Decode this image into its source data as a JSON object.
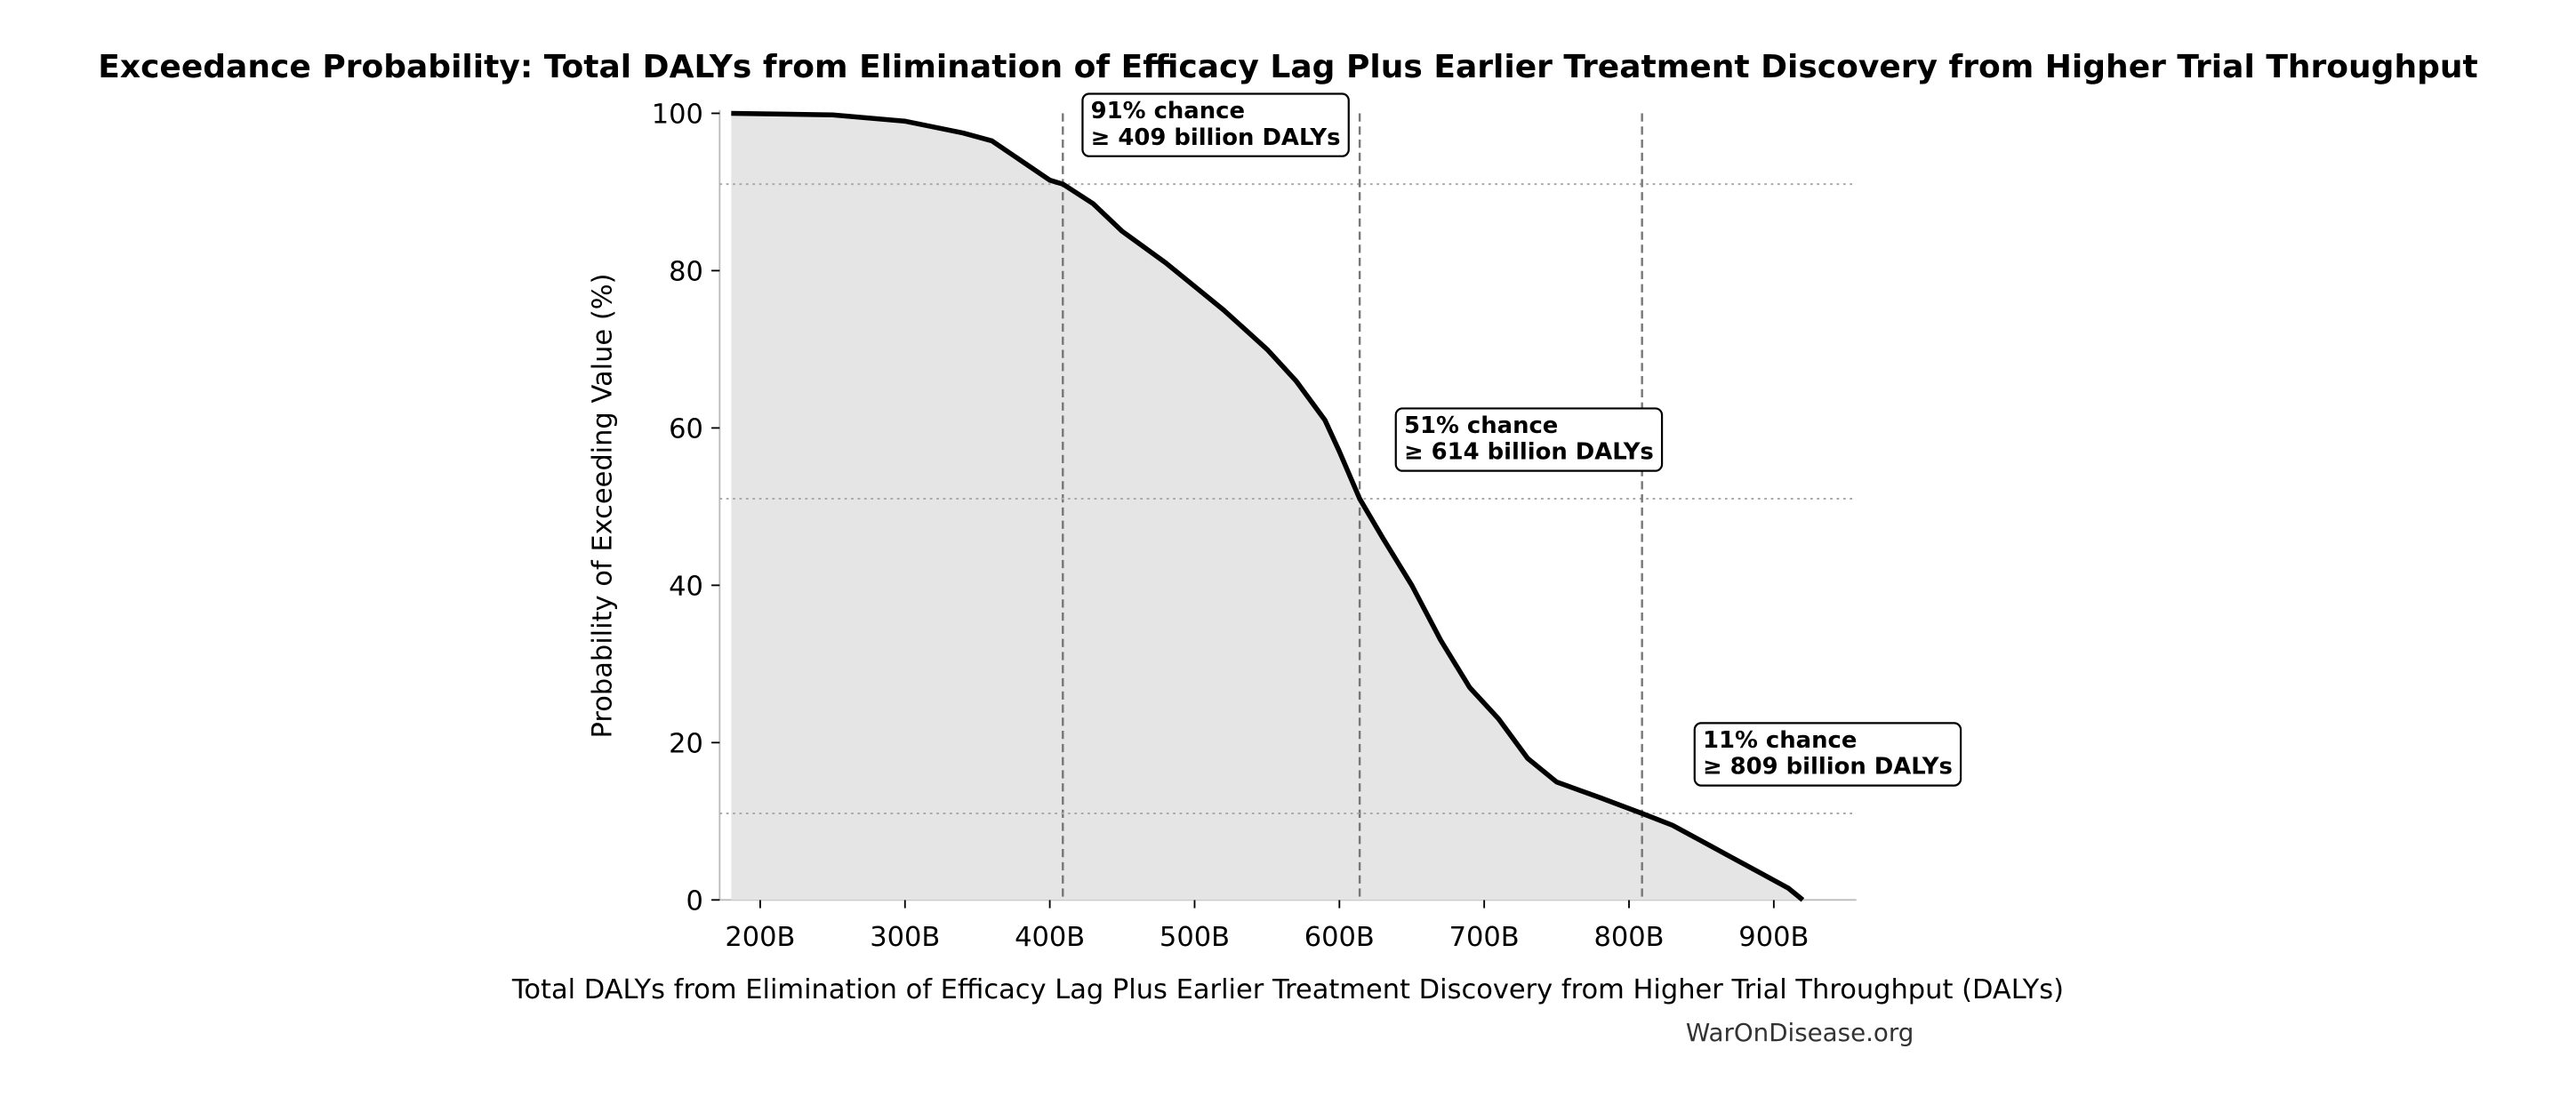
{
  "chart_data": {
    "type": "line",
    "title": "Exceedance Probability: Total DALYs from Elimination of Efficacy Lag Plus Earlier Treatment Discovery from Higher Trial Throughput",
    "x_label": "Total DALYs from Elimination of Efficacy Lag Plus Earlier Treatment Discovery from Higher Trial Throughput (DALYs)",
    "y_label": "Probability of Exceeding Value (%)",
    "source": "WarOnDisease.org",
    "x": [
      180000000000,
      250000000000,
      300000000000,
      340000000000,
      360000000000,
      380000000000,
      400000000000,
      409000000000,
      430000000000,
      450000000000,
      480000000000,
      500000000000,
      520000000000,
      550000000000,
      570000000000,
      590000000000,
      600000000000,
      614000000000,
      630000000000,
      650000000000,
      670000000000,
      690000000000,
      710000000000,
      730000000000,
      750000000000,
      780000000000,
      809000000000,
      830000000000,
      850000000000,
      870000000000,
      890000000000,
      910000000000,
      920000000000
    ],
    "series": [
      {
        "color": "#000000",
        "fill": "#e5e5e5",
        "values": [
          100,
          99.8,
          99,
          97.5,
          96.5,
          94,
          91.5,
          91,
          88.5,
          85,
          81,
          78,
          75,
          70,
          66,
          61,
          57,
          51,
          46,
          40,
          33,
          27,
          23,
          18,
          15,
          13,
          11,
          9.5,
          7.5,
          5.5,
          3.5,
          1.5,
          0
        ]
      }
    ],
    "thresholds": [
      {
        "x": 409000000000,
        "y": 91,
        "label_lines": [
          "91% chance",
          "≥ 409 billion DALYs"
        ]
      },
      {
        "x": 614000000000,
        "y": 51,
        "label_lines": [
          "51% chance",
          "≥ 614 billion DALYs"
        ]
      },
      {
        "x": 809000000000,
        "y": 11,
        "label_lines": [
          "11% chance",
          "≥ 809 billion DALYs"
        ]
      }
    ],
    "xlim": [
      172000000000,
      957000000000
    ],
    "ylim": [
      0,
      100
    ],
    "xticks": [
      {
        "value": 200000000000,
        "label": "200B"
      },
      {
        "value": 300000000000,
        "label": "300B"
      },
      {
        "value": 400000000000,
        "label": "400B"
      },
      {
        "value": 500000000000,
        "label": "500B"
      },
      {
        "value": 600000000000,
        "label": "600B"
      },
      {
        "value": 700000000000,
        "label": "700B"
      },
      {
        "value": 800000000000,
        "label": "800B"
      },
      {
        "value": 900000000000,
        "label": "900B"
      }
    ],
    "yticks": [
      0,
      20,
      40,
      60,
      80,
      100
    ]
  }
}
